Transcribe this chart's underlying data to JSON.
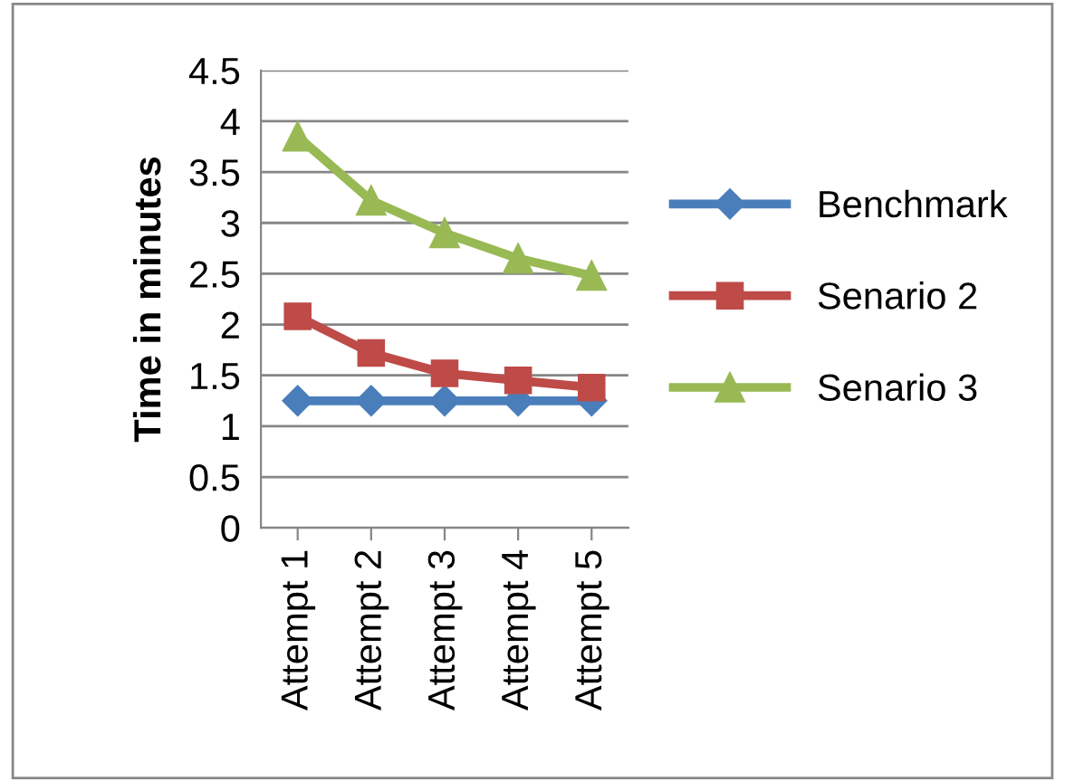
{
  "chart_data": {
    "type": "line",
    "ylabel": "Time in minutes",
    "categories": [
      "Attempt 1",
      "Attempt 2",
      "Attempt 3",
      "Attempt 4",
      "Attempt 5"
    ],
    "series": [
      {
        "name": "Benchmark",
        "color": "#4a7ebb",
        "marker": "diamond",
        "values": [
          1.25,
          1.25,
          1.25,
          1.25,
          1.25
        ]
      },
      {
        "name": "Senario 2",
        "color": "#be4b48",
        "marker": "square",
        "values": [
          2.08,
          1.72,
          1.52,
          1.45,
          1.38
        ]
      },
      {
        "name": "Senario 3",
        "color": "#98b954",
        "marker": "triangle",
        "values": [
          3.85,
          3.22,
          2.9,
          2.65,
          2.48
        ]
      }
    ],
    "ylim": [
      0,
      4.5
    ],
    "yticks": [
      0,
      0.5,
      1,
      1.5,
      2,
      2.5,
      3,
      3.5,
      4,
      4.5
    ],
    "grid": "y",
    "legend": "right",
    "line_style": "solid"
  }
}
